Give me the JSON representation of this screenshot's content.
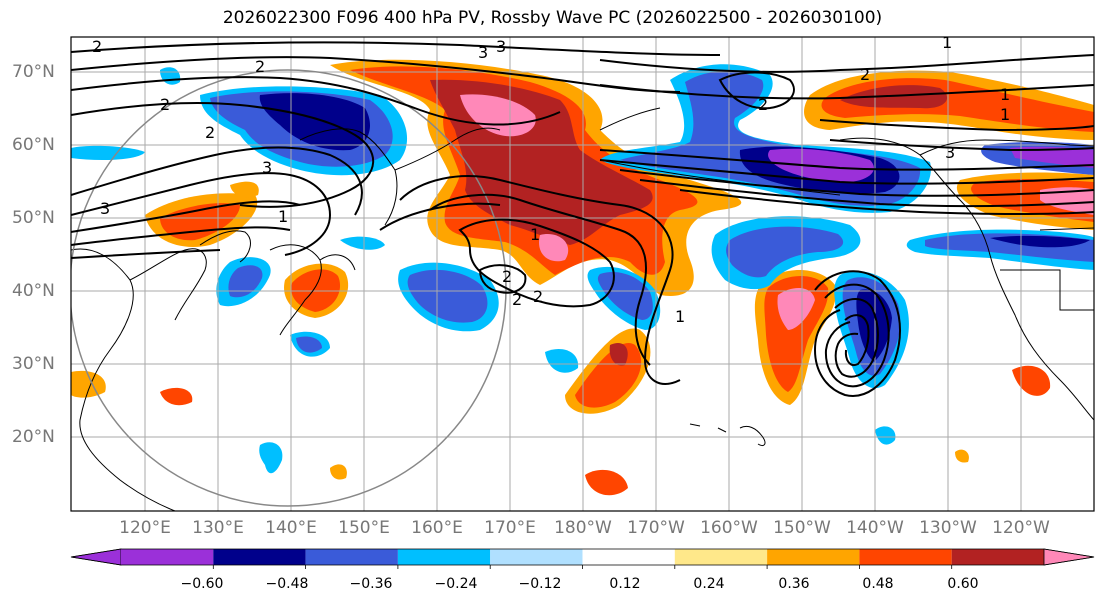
{
  "title": "2026022300 F096 400 hPa PV, Rossby Wave PC (2026022500 - 2026030100)",
  "lat_labels": [
    "70°N",
    "60°N",
    "50°N",
    "40°N",
    "30°N",
    "20°N"
  ],
  "lon_labels": [
    "120°E",
    "130°E",
    "140°E",
    "150°E",
    "160°E",
    "170°E",
    "180°W",
    "170°W",
    "160°W",
    "150°W",
    "140°W",
    "130°W",
    "120°W"
  ],
  "colorbar": {
    "ticks": [
      "−0.60",
      "−0.48",
      "−0.36",
      "−0.24",
      "−0.12",
      "0.12",
      "0.24",
      "0.36",
      "0.48",
      "0.60"
    ],
    "colors": [
      "#9b30d9",
      "#00008b",
      "#3a5bd9",
      "#00bfff",
      "#b0e0ff",
      "#ffffff",
      "#ffe88a",
      "#ffa500",
      "#ff4500",
      "#b22222",
      "#ff88b8"
    ]
  },
  "contour_labels": [
    "2",
    "3",
    "2",
    "2",
    "1",
    "2",
    "3",
    "1",
    "2",
    "1",
    "2",
    "1",
    "2",
    "3",
    "1",
    "3",
    "1",
    "2",
    "2",
    "3"
  ]
}
